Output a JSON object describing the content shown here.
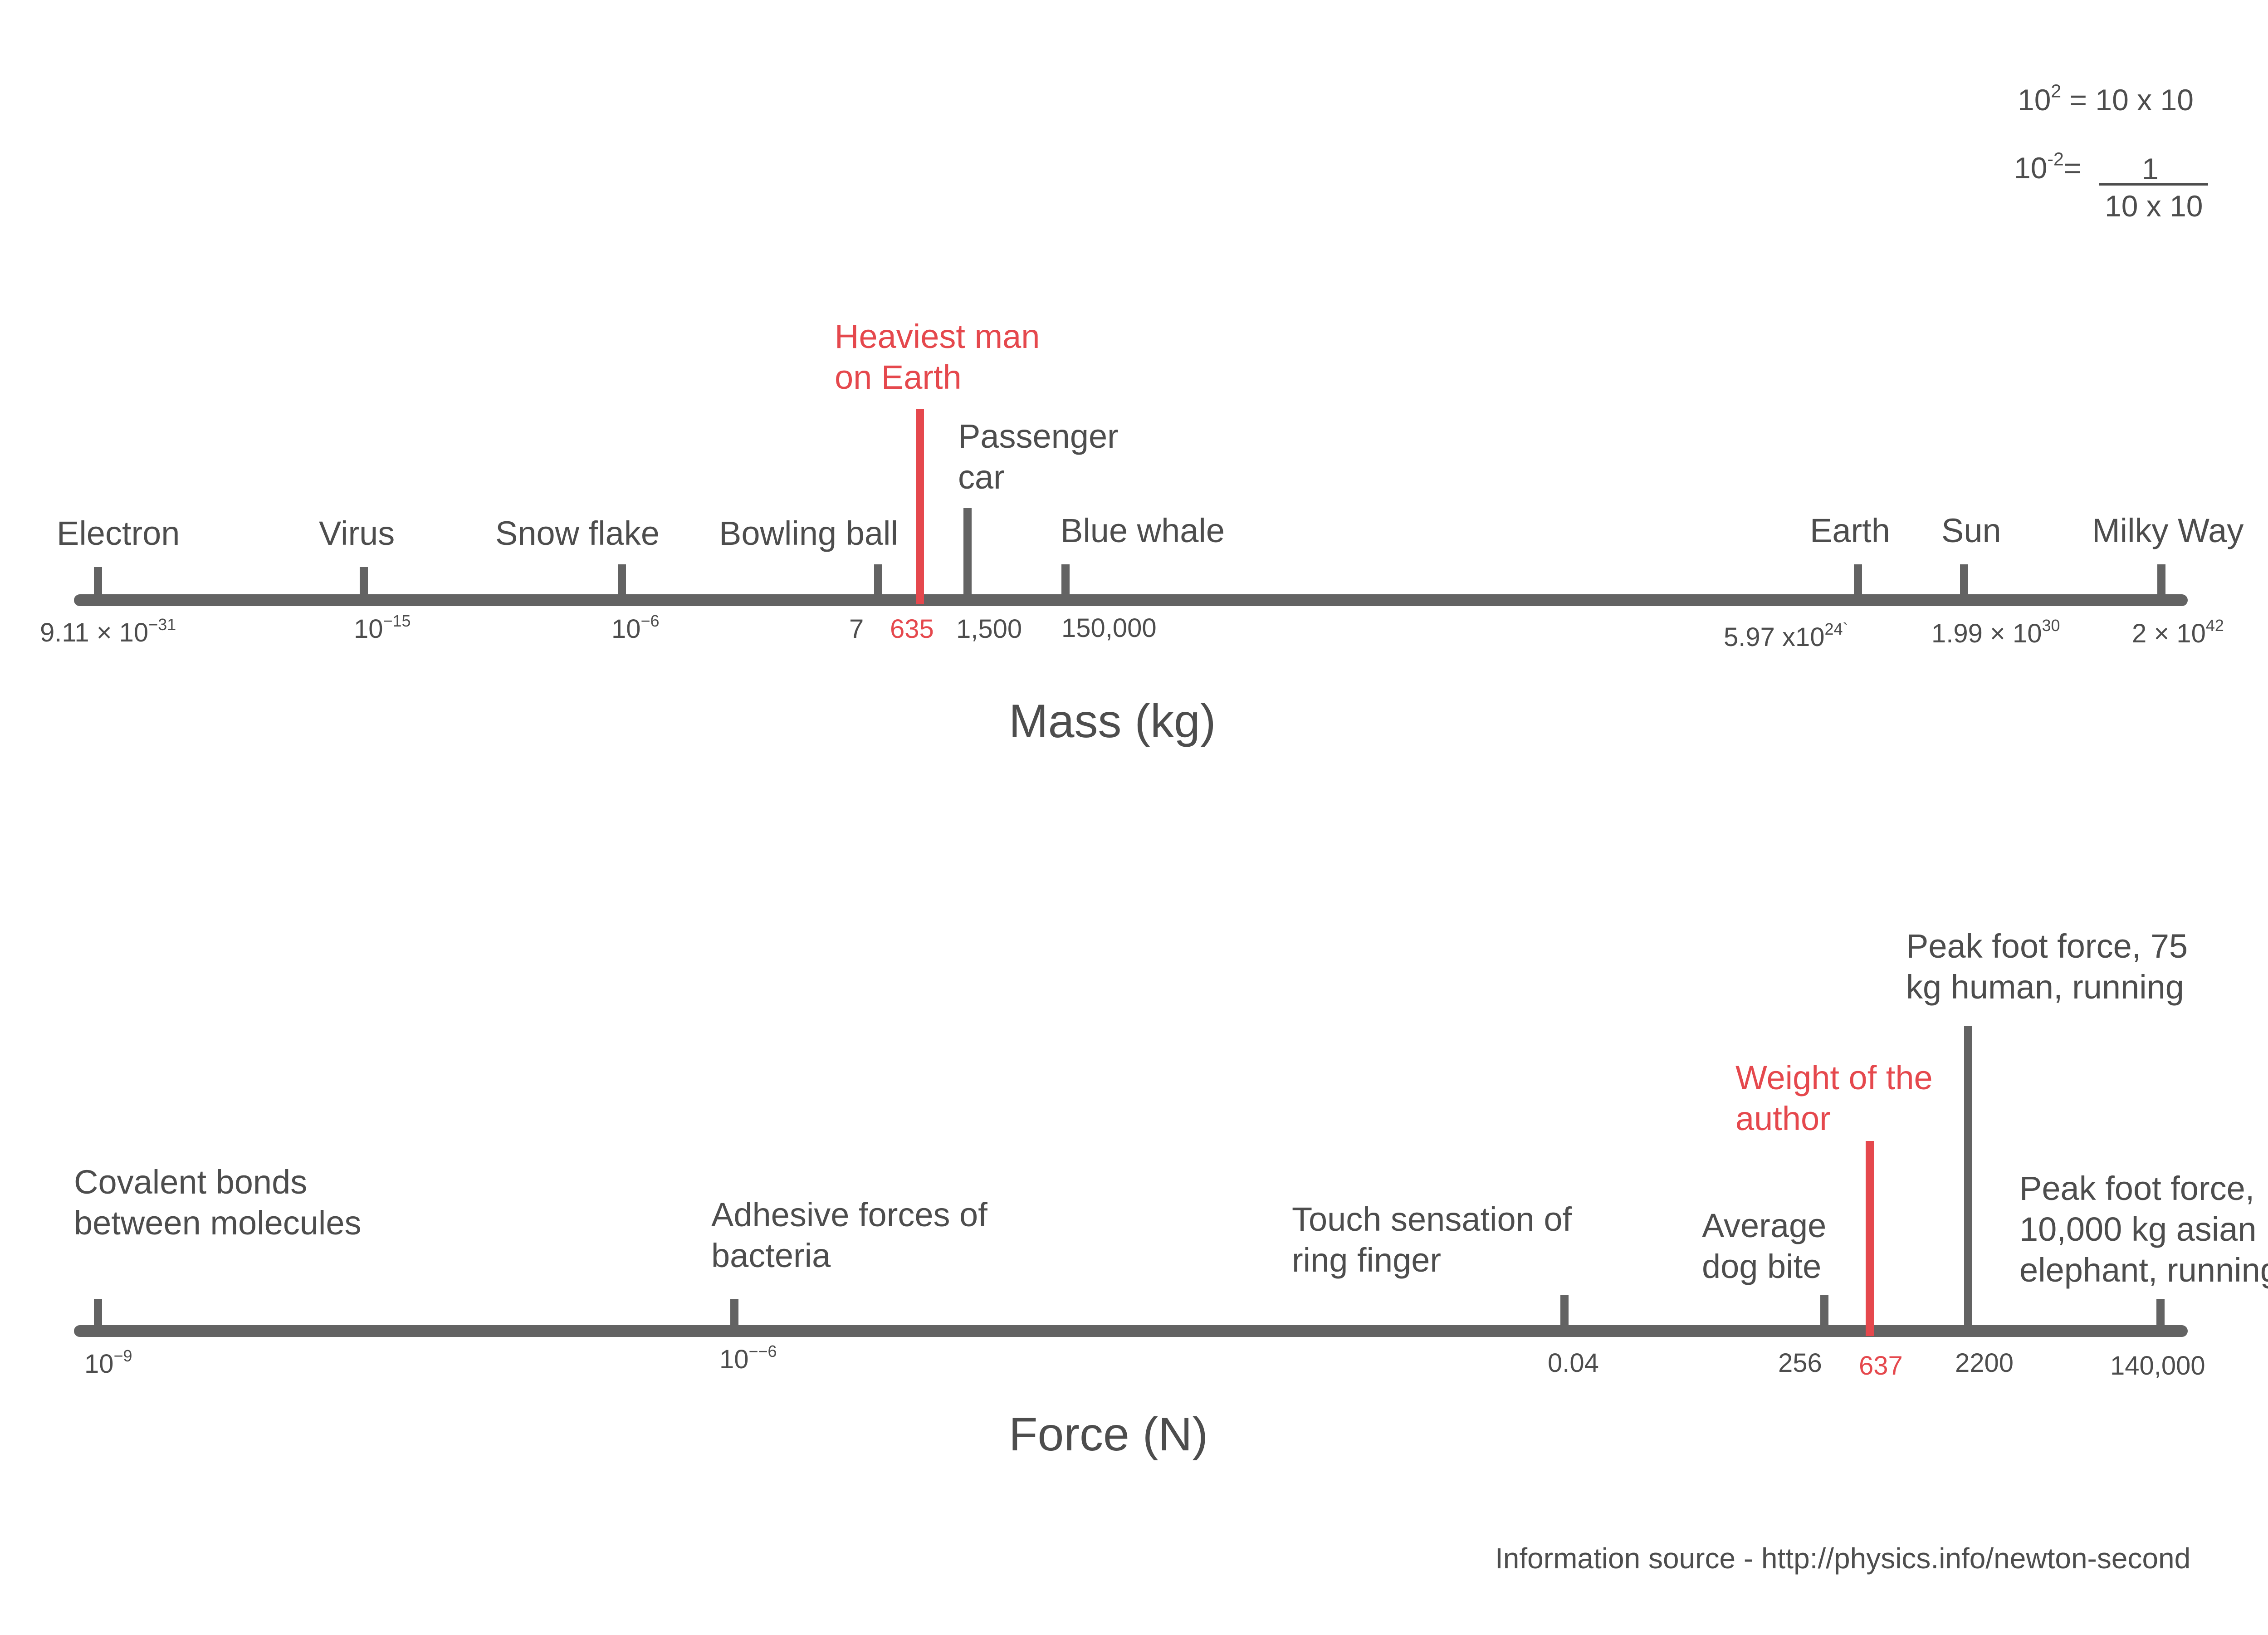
{
  "formulas": {
    "square_base": "10",
    "square_exp": "2",
    "square_rhs": "= 10 x 10",
    "inverse_base": "10",
    "inverse_exp": "-2",
    "inverse_eq": "=",
    "inverse_num": "1",
    "inverse_den": "10 x 10"
  },
  "mass": {
    "title": "Mass (kg)",
    "items": [
      {
        "label": "Electron",
        "value_base": "9.11  × 10",
        "value_exp": "−31",
        "highlight": false
      },
      {
        "label": "Virus",
        "value_base": "10",
        "value_exp": "−15",
        "highlight": false
      },
      {
        "label": "Snow flake",
        "value_base": "10",
        "value_exp": "−6",
        "highlight": false
      },
      {
        "label": "Bowling ball",
        "value_base": "7",
        "value_exp": "",
        "highlight": false
      },
      {
        "label": "Heaviest man on Earth",
        "label_line1": "Heaviest man",
        "label_line2": "on Earth",
        "value_base": "635",
        "value_exp": "",
        "highlight": true
      },
      {
        "label": "Passenger car",
        "label_line1": "Passenger",
        "label_line2": "car",
        "value_base": "1,500",
        "value_exp": "",
        "highlight": false
      },
      {
        "label": "Blue whale",
        "value_base": "150,000",
        "value_exp": "",
        "highlight": false
      },
      {
        "label": "Earth",
        "value_base": "5.97 x10",
        "value_exp": "24`",
        "highlight": false
      },
      {
        "label": "Sun",
        "value_base": "1.99 × 10",
        "value_exp": "30",
        "highlight": false
      },
      {
        "label": "Milky Way",
        "value_base": "2 × 10",
        "value_exp": "42",
        "highlight": false
      }
    ]
  },
  "force": {
    "title": "Force (N)",
    "items": [
      {
        "label_line1": "Covalent bonds",
        "label_line2": "between molecules",
        "value_base": "10",
        "value_exp": "−9",
        "highlight": false
      },
      {
        "label_line1": "Adhesive forces of",
        "label_line2": "bacteria",
        "value_base": "10",
        "value_exp": "−−6",
        "highlight": false
      },
      {
        "label_line1": "Touch sensation of",
        "label_line2": "ring finger",
        "value_base": "0.04",
        "value_exp": "",
        "highlight": false
      },
      {
        "label_line1": "Average",
        "label_line2": "dog bite",
        "value_base": "256",
        "value_exp": "",
        "highlight": false
      },
      {
        "label_line1": "Weight of the",
        "label_line2": "author",
        "value_base": "637",
        "value_exp": "",
        "highlight": true
      },
      {
        "label_line1": "Peak foot force, 75",
        "label_line2": "kg human, running",
        "value_base": "2200",
        "value_exp": "",
        "highlight": false
      },
      {
        "label_line1": "Peak foot force,",
        "label_line2": "10,000 kg asian",
        "label_line3": "elephant, running",
        "value_base": "140,000",
        "value_exp": "",
        "highlight": false
      }
    ]
  },
  "source": "Information source - http://physics.info/newton-second",
  "colors": {
    "axis": "#636363",
    "text": "#4d4d4d",
    "highlight": "#e5484d"
  }
}
